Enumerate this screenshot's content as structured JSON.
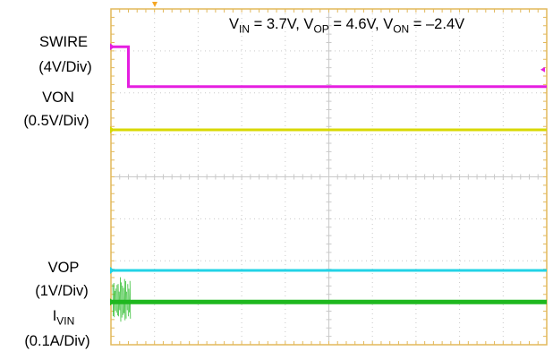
{
  "chart_data": {
    "type": "line",
    "title": "",
    "conditions": {
      "vin_sym": "V",
      "vin_sub": "IN",
      "vin_val": " = 3.7V, ",
      "vop_sym": "V",
      "vop_sub": "OP",
      "vop_val": " = 4.6V, ",
      "von_sym": "V",
      "von_sub": "ON",
      "von_val": " = –2.4V"
    },
    "grid": true,
    "divisions": {
      "x": 10,
      "y": 8
    },
    "series": [
      {
        "name": "SWIRE",
        "scale": "(4V/Div)",
        "color": "#e51ee0",
        "x": [
          0,
          0.4,
          0.4,
          10
        ],
        "y": [
          7.1,
          7.1,
          6.15,
          6.15
        ]
      },
      {
        "name": "VON",
        "scale": "(0.5V/Div)",
        "color": "#d8d800",
        "x": [
          0,
          10
        ],
        "y": [
          5.12,
          5.12
        ]
      },
      {
        "name": "VOP",
        "scale": "(1V/Div)",
        "color": "#22d3e6",
        "x": [
          0,
          10
        ],
        "y": [
          1.77,
          1.77
        ]
      },
      {
        "name_sym": "I",
        "name_sub": "VIN",
        "scale": "(0.1A/Div)",
        "color": "#1fb81f",
        "x": [
          0,
          0.45,
          0.45,
          10
        ],
        "y": [
          1.02,
          1.02,
          1.02,
          1.02
        ],
        "switching_burst_x": [
          0,
          0.45
        ]
      }
    ],
    "trigger_color": "#f5a623"
  }
}
